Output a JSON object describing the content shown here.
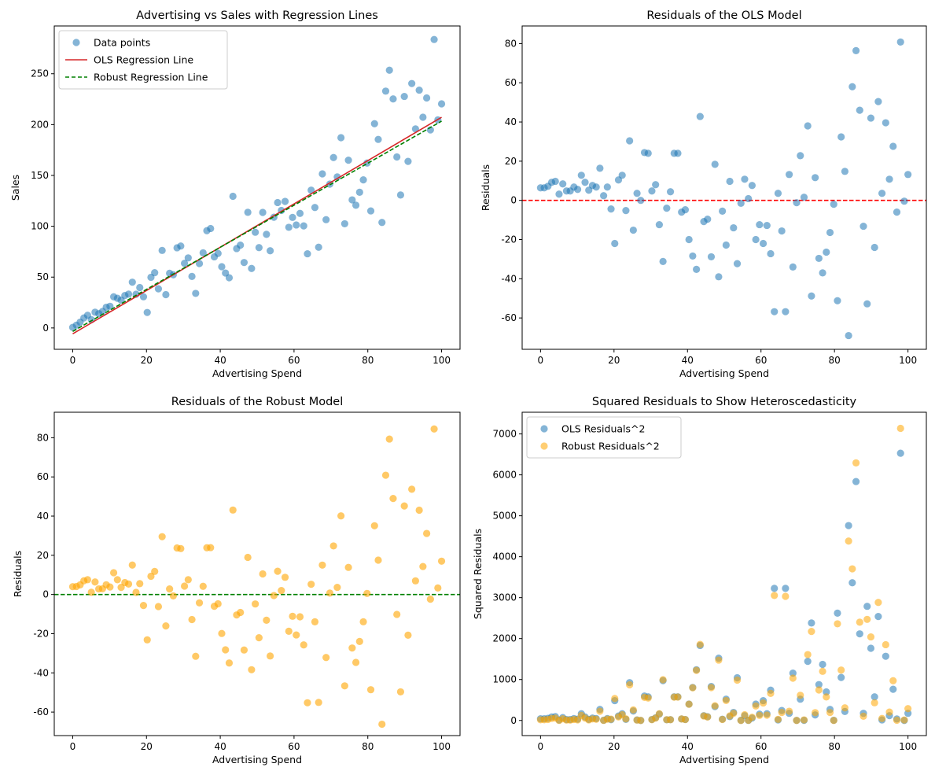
{
  "chart_data": [
    {
      "type": "scatter",
      "title": "Advertising vs Sales with Regression Lines",
      "xlabel": "Advertising Spend",
      "ylabel": "Sales",
      "xlim": [
        -5,
        105
      ],
      "ylim": [
        -21,
        297
      ],
      "xticks": [
        0,
        20,
        40,
        60,
        80,
        100
      ],
      "yticks": [
        0,
        50,
        100,
        150,
        200,
        250
      ],
      "legend_position": "top-left",
      "series": [
        {
          "name": "Data points",
          "kind": "scatter",
          "color": "#1f77b4",
          "derived": "ols_line + ols_residual"
        },
        {
          "name": "OLS Regression Line",
          "kind": "line",
          "color": "#d62728",
          "intercept": -5.8,
          "slope": 2.13
        },
        {
          "name": "Robust Regression Line",
          "kind": "dashed-line",
          "color": "#008000",
          "intercept": -3.4,
          "slope": 2.068
        }
      ]
    },
    {
      "type": "scatter",
      "title": "Residuals of the OLS Model",
      "xlabel": "Advertising Spend",
      "ylabel": "Residuals",
      "xlim": [
        -5,
        105
      ],
      "ylim": [
        -76,
        89
      ],
      "xticks": [
        0,
        20,
        40,
        60,
        80,
        100
      ],
      "yticks": [
        -60,
        -40,
        -20,
        0,
        20,
        40,
        60,
        80
      ],
      "hline": {
        "y": 0,
        "color": "#ff0000"
      },
      "color": "#1f77b4"
    },
    {
      "type": "scatter",
      "title": "Residuals of the Robust Model",
      "xlabel": "Advertising Spend",
      "ylabel": "Residuals",
      "xlim": [
        -5,
        105
      ],
      "ylim": [
        -72,
        93
      ],
      "xticks": [
        0,
        20,
        40,
        60,
        80,
        100
      ],
      "yticks": [
        -60,
        -40,
        -20,
        0,
        20,
        40,
        60,
        80
      ],
      "hline": {
        "y": 0,
        "color": "#008000"
      },
      "color": "#ffa500"
    },
    {
      "type": "scatter",
      "title": "Squared Residuals to Show Heteroscedasticity",
      "xlabel": "Advertising Spend",
      "ylabel": "Squared Residuals",
      "xlim": [
        -5,
        105
      ],
      "ylim": [
        -370,
        7530
      ],
      "xticks": [
        0,
        20,
        40,
        60,
        80,
        100
      ],
      "yticks": [
        0,
        1000,
        2000,
        3000,
        4000,
        5000,
        6000,
        7000
      ],
      "legend_position": "top-left",
      "series": [
        {
          "name": "OLS Residuals^2",
          "color": "#1f77b4"
        },
        {
          "name": "Robust Residuals^2",
          "color": "#ffa500"
        }
      ]
    }
  ],
  "x_values": {
    "start": 0,
    "stop": 100,
    "count": 100
  },
  "ols_residuals": [
    6.4,
    6.4,
    7.2,
    9.2,
    9.7,
    3.2,
    8.4,
    4.8,
    4.8,
    6.8,
    5.6,
    12.8,
    9.2,
    5.2,
    7.6,
    6.8,
    16.4,
    2.4,
    6.8,
    -4.4,
    -22,
    10.4,
    12.8,
    -5.2,
    30.4,
    -15.2,
    3.6,
    0,
    24.4,
    24,
    4.8,
    8,
    -12.4,
    -31.2,
    -4,
    4.4,
    24,
    24,
    -6,
    -4.8,
    -20,
    -28.4,
    -35.2,
    42.8,
    -10.8,
    -9.6,
    -28.8,
    18.4,
    -39,
    -5.5,
    -22.8,
    9.7,
    -14,
    -32.3,
    -1.5,
    10.8,
    0.9,
    7.6,
    -20,
    -12.4,
    -22,
    -12.8,
    -27.2,
    -56.8,
    3.6,
    -15.6,
    -56.8,
    13.2,
    -34,
    -1.2,
    22.8,
    1.6,
    38,
    -48.8,
    11.6,
    -29.6,
    -37,
    -26.4,
    -16.4,
    -2,
    -51.2,
    32.4,
    14.8,
    -69,
    58,
    76.4,
    46,
    -13.2,
    -52.8,
    42,
    -24,
    50.4,
    3.6,
    39.6,
    10.8,
    27.6,
    -6,
    80.8,
    -0.4,
    13.2
  ]
}
